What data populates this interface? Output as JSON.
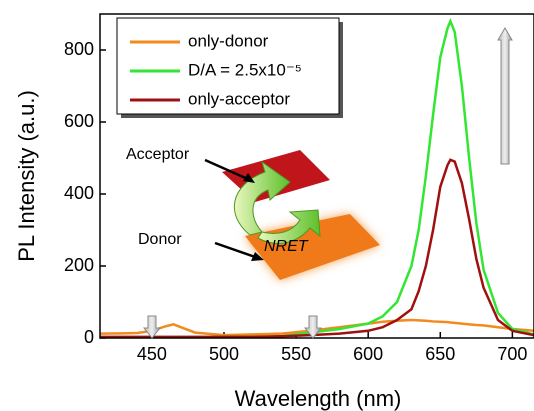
{
  "chart_data": {
    "type": "line",
    "x_label": "Wavelength (nm)",
    "y_label": "PL Intensity (a.u.)",
    "x": [
      414,
      430,
      440,
      450,
      460,
      465,
      470,
      480,
      500,
      520,
      540,
      560,
      580,
      600,
      610,
      620,
      630,
      635,
      640,
      645,
      650,
      655,
      657,
      660,
      665,
      670,
      675,
      680,
      690,
      700,
      715
    ],
    "series": [
      {
        "name": "only-donor",
        "color": "#f28a1e",
        "values": [
          12,
          13,
          14,
          20,
          33,
          38,
          30,
          15,
          8,
          10,
          12,
          20,
          30,
          40,
          45,
          48,
          50,
          49,
          48,
          46,
          45,
          44,
          43,
          42,
          40,
          38,
          36,
          35,
          30,
          25,
          20
        ]
      },
      {
        "name": "D/A = 2.5x10⁻⁵",
        "color": "#33e633",
        "values": [
          2,
          2,
          2,
          2,
          2,
          2,
          2,
          2,
          3,
          3,
          5,
          15,
          25,
          40,
          60,
          100,
          200,
          300,
          450,
          620,
          780,
          860,
          880,
          850,
          700,
          500,
          320,
          190,
          70,
          25,
          10
        ]
      },
      {
        "name": "only-acceptor",
        "color": "#a01010",
        "values": [
          3,
          3,
          3,
          3,
          3,
          3,
          3,
          3,
          3,
          3,
          5,
          8,
          12,
          20,
          30,
          50,
          80,
          130,
          200,
          300,
          420,
          480,
          495,
          490,
          430,
          330,
          220,
          140,
          50,
          20,
          8
        ]
      }
    ],
    "xlim": [
      414,
      715
    ],
    "ylim": [
      0,
      900
    ],
    "xticks": [
      450,
      500,
      550,
      600,
      650,
      700
    ],
    "yticks": [
      0,
      200,
      400,
      600,
      800
    ],
    "annotations": [
      "Acceptor",
      "Donor",
      "NRET"
    ]
  }
}
